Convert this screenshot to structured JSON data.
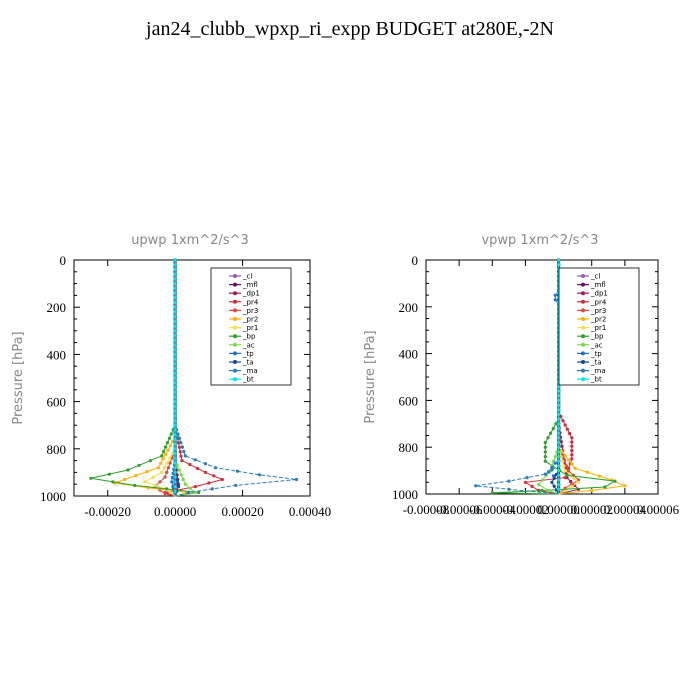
{
  "page_title": "jan24_clubb_wpxp_ri_expp  BUDGET at280E,-2N",
  "colors": {
    "cl": "#9b59b6",
    "mfl": "#6a0d6a",
    "dp1": "#a0185a",
    "pr4": "#d62839",
    "pr3": "#e8453c",
    "pr2": "#ffb000",
    "pr1": "#f4e04d",
    "bp": "#2ca02c",
    "ac": "#7bd84a",
    "tp": "#1f6fd1",
    "ta": "#0d47a1",
    "ma": "#2b7bb9",
    "bt": "#00e5e5"
  },
  "chart_data": [
    {
      "type": "line",
      "title": "upwp   1xm^2/s^3",
      "ylabel": "Pressure [hPa]",
      "y_ticks": [
        "0",
        "200",
        "400",
        "600",
        "800",
        "1000"
      ],
      "x_ticks": [
        "-0.00020",
        "0.00000",
        "0.00020",
        "0.00040"
      ],
      "xlim": [
        -0.0003,
        0.0004
      ],
      "ylim": [
        1000,
        0
      ],
      "y_inverted": true,
      "legend": [
        "_cl",
        "_mfl",
        "_dp1",
        "_pr4",
        "_pr3",
        "_pr2",
        "_pr1",
        "_bp",
        "_ac",
        "_tp",
        "_ta",
        "_ma",
        "_bt"
      ],
      "legend_position": "top-right",
      "series": [
        {
          "name": "_cl",
          "key": "cl",
          "points": [
            [
              0,
              0
            ],
            [
              0,
              200
            ],
            [
              0,
              400
            ],
            [
              0,
              600
            ],
            [
              0,
              800
            ],
            [
              0,
              900
            ],
            [
              0,
              1000
            ]
          ]
        },
        {
          "name": "_mfl",
          "key": "mfl",
          "points": [
            [
              0,
              0
            ],
            [
              0,
              400
            ],
            [
              0,
              800
            ],
            [
              0,
              1000
            ]
          ]
        },
        {
          "name": "_dp1",
          "key": "dp1",
          "points": [
            [
              0,
              0
            ],
            [
              0,
              600
            ],
            [
              0,
              850
            ],
            [
              1e-05,
              950
            ],
            [
              -2e-05,
              990
            ],
            [
              0,
              1000
            ]
          ]
        },
        {
          "name": "_pr4",
          "key": "pr4",
          "points": [
            [
              0,
              0
            ],
            [
              0,
              700
            ],
            [
              2e-05,
              850
            ],
            [
              9e-05,
              900
            ],
            [
              0.00014,
              930
            ],
            [
              6e-05,
              960
            ],
            [
              -3e-05,
              985
            ],
            [
              0,
              1000
            ]
          ]
        },
        {
          "name": "_pr3",
          "key": "pr3",
          "points": [
            [
              0,
              0
            ],
            [
              0,
              800
            ],
            [
              -3e-05,
              920
            ],
            [
              -6e-05,
              960
            ],
            [
              -3e-05,
              990
            ],
            [
              0,
              1000
            ]
          ]
        },
        {
          "name": "_pr2",
          "key": "pr2",
          "points": [
            [
              0,
              0
            ],
            [
              0,
              750
            ],
            [
              -5e-05,
              880
            ],
            [
              -0.00015,
              930
            ],
            [
              -0.00018,
              945
            ],
            [
              -8e-05,
              965
            ],
            [
              4e-05,
              985
            ],
            [
              0,
              1000
            ]
          ]
        },
        {
          "name": "_pr1",
          "key": "pr1",
          "points": [
            [
              0,
              0
            ],
            [
              0,
              800
            ],
            [
              -4e-05,
              900
            ],
            [
              -9e-05,
              940
            ],
            [
              -3e-05,
              970
            ],
            [
              0,
              1000
            ]
          ]
        },
        {
          "name": "_bp",
          "key": "bp",
          "points": [
            [
              0,
              0
            ],
            [
              0,
              700
            ],
            [
              -4e-05,
              830
            ],
            [
              -0.00014,
              890
            ],
            [
              -0.00025,
              925
            ],
            [
              -0.00012,
              955
            ],
            [
              7e-05,
              985
            ],
            [
              0,
              1000
            ]
          ]
        },
        {
          "name": "_ac",
          "key": "ac",
          "points": [
            [
              0,
              0
            ],
            [
              0,
              850
            ],
            [
              3e-05,
              950
            ],
            [
              6e-05,
              985
            ],
            [
              0,
              1000
            ]
          ]
        },
        {
          "name": "_tp",
          "key": "tp",
          "points": [
            [
              0,
              0
            ],
            [
              0,
              850
            ],
            [
              -1e-05,
              940
            ],
            [
              0,
              1000
            ]
          ]
        },
        {
          "name": "_ta",
          "key": "ta",
          "points": [
            [
              0,
              0
            ],
            [
              0,
              900
            ],
            [
              1e-05,
              960
            ],
            [
              0,
              1000
            ]
          ]
        },
        {
          "name": "_ma",
          "key": "ma",
          "points": [
            [
              0,
              0
            ],
            [
              0,
              700
            ],
            [
              3e-05,
              830
            ],
            [
              0.00012,
              880
            ],
            [
              0.00025,
              910
            ],
            [
              0.00036,
              930
            ],
            [
              0.00018,
              955
            ],
            [
              4e-05,
              985
            ],
            [
              0,
              1000
            ]
          ]
        },
        {
          "name": "_bt",
          "key": "bt",
          "points": [
            [
              0,
              0
            ],
            [
              0,
              1000
            ]
          ]
        }
      ]
    },
    {
      "type": "line",
      "title": "vpwp   1xm^2/s^3",
      "ylabel": "Pressure [hPa]",
      "y_ticks": [
        "0",
        "200",
        "400",
        "600",
        "800",
        "1000"
      ],
      "x_ticks": [
        "-0.00008",
        "-0.00006",
        "-0.00004",
        "-0.00002",
        "0.00000",
        "0.00002",
        "0.00004",
        "0.00006"
      ],
      "xlim": [
        -8e-05,
        6e-05
      ],
      "ylim": [
        1000,
        0
      ],
      "y_inverted": true,
      "legend": [
        "_cl",
        "_mfl",
        "_dp1",
        "_pr4",
        "_pr3",
        "_pr2",
        "_pr1",
        "_bp",
        "_ac",
        "_tp",
        "_ta",
        "_ma",
        "_bt"
      ],
      "legend_position": "top-right",
      "series": [
        {
          "name": "_cl",
          "key": "cl",
          "points": [
            [
              0,
              0
            ],
            [
              0,
              400
            ],
            [
              0,
              800
            ],
            [
              0,
              1000
            ]
          ]
        },
        {
          "name": "_mfl",
          "key": "mfl",
          "points": [
            [
              0,
              0
            ],
            [
              0,
              500
            ],
            [
              0,
              900
            ],
            [
              0,
              1000
            ]
          ]
        },
        {
          "name": "_dp1",
          "key": "dp1",
          "points": [
            [
              0,
              0
            ],
            [
              0,
              700
            ],
            [
              5e-06,
              930
            ],
            [
              1.2e-05,
              980
            ],
            [
              0,
              1000
            ]
          ]
        },
        {
          "name": "_pr4",
          "key": "pr4",
          "points": [
            [
              0,
              0
            ],
            [
              0,
              650
            ],
            [
              8e-06,
              760
            ],
            [
              8e-06,
              850
            ],
            [
              4e-06,
              930
            ],
            [
              -2e-05,
              950
            ],
            [
              -1.2e-05,
              985
            ],
            [
              0,
              1000
            ]
          ]
        },
        {
          "name": "_pr3",
          "key": "pr3",
          "points": [
            [
              0,
              0
            ],
            [
              0,
              800
            ],
            [
              6e-06,
              900
            ],
            [
              1.2e-05,
              940
            ],
            [
              4e-06,
              975
            ],
            [
              0,
              1000
            ]
          ]
        },
        {
          "name": "_pr2",
          "key": "pr2",
          "points": [
            [
              0,
              0
            ],
            [
              0,
              130
            ],
            [
              2e-06,
              150
            ],
            [
              2e-06,
              170
            ],
            [
              0,
              190
            ],
            [
              0,
              800
            ],
            [
              1e-05,
              890
            ],
            [
              3.2e-05,
              940
            ],
            [
              4e-05,
              965
            ],
            [
              2e-05,
              985
            ],
            [
              0,
              1000
            ]
          ]
        },
        {
          "name": "_pr1",
          "key": "pr1",
          "points": [
            [
              0,
              0
            ],
            [
              0,
              800
            ],
            [
              4e-06,
              900
            ],
            [
              1.2e-05,
              950
            ],
            [
              4e-06,
              985
            ],
            [
              0,
              1000
            ]
          ]
        },
        {
          "name": "_bp",
          "key": "bp",
          "points": [
            [
              0,
              0
            ],
            [
              0,
              680
            ],
            [
              -8e-06,
              780
            ],
            [
              -8e-06,
              860
            ],
            [
              5e-06,
              920
            ],
            [
              3.4e-05,
              945
            ],
            [
              2.8e-05,
              970
            ],
            [
              -1e-05,
              985
            ],
            [
              -4e-05,
              995
            ],
            [
              0,
              1000
            ]
          ]
        },
        {
          "name": "_ac",
          "key": "ac",
          "points": [
            [
              0,
              0
            ],
            [
              0,
              800
            ],
            [
              -5e-06,
              900
            ],
            [
              -1.2e-05,
              960
            ],
            [
              -6e-06,
              985
            ],
            [
              0,
              1000
            ]
          ]
        },
        {
          "name": "_tp",
          "key": "tp",
          "points": [
            [
              0,
              0
            ],
            [
              0,
              130
            ],
            [
              -2e-06,
              150
            ],
            [
              -2e-06,
              170
            ],
            [
              0,
              190
            ],
            [
              0,
              850
            ],
            [
              -6e-06,
              905
            ],
            [
              0,
              940
            ],
            [
              0,
              1000
            ]
          ]
        },
        {
          "name": "_ta",
          "key": "ta",
          "points": [
            [
              0,
              0
            ],
            [
              0,
              900
            ],
            [
              -4e-06,
              950
            ],
            [
              0,
              1000
            ]
          ]
        },
        {
          "name": "_ma",
          "key": "ma",
          "points": [
            [
              0,
              0
            ],
            [
              0,
              880
            ],
            [
              -8e-06,
              915
            ],
            [
              -3e-05,
              945
            ],
            [
              -5e-05,
              965
            ],
            [
              -3e-05,
              980
            ],
            [
              0,
              1000
            ]
          ]
        },
        {
          "name": "_bt",
          "key": "bt",
          "points": [
            [
              0,
              0
            ],
            [
              0,
              1000
            ]
          ]
        }
      ]
    }
  ]
}
